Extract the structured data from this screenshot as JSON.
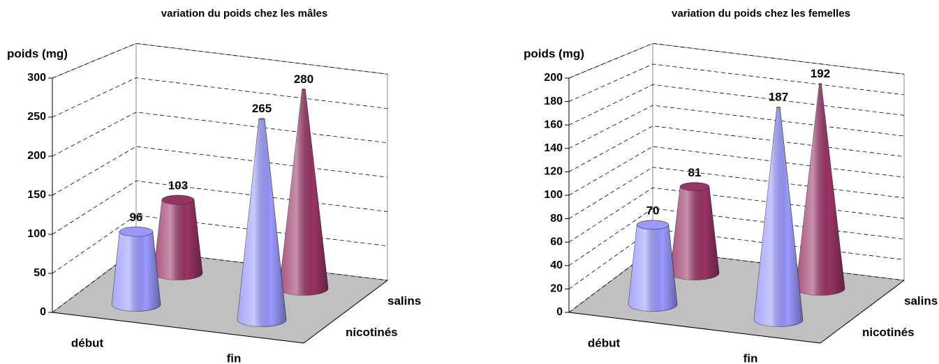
{
  "chart_data": [
    {
      "type": "cone",
      "title": "variation du poids chez les mâles",
      "y_label": "poids (mg)",
      "categories": [
        "début",
        "fin"
      ],
      "series": [
        {
          "name": "nicotinés",
          "color": "#9999ff",
          "values": [
            96,
            265
          ]
        },
        {
          "name": "salins",
          "color": "#993366",
          "values": [
            103,
            280
          ]
        }
      ],
      "ylim": [
        0,
        300
      ],
      "yticks": [
        0,
        50,
        100,
        150,
        200,
        250,
        300
      ],
      "grid": true
    },
    {
      "type": "cone",
      "title": "variation du poids chez les femelles",
      "y_label": "poids (mg)",
      "categories": [
        "début",
        "fin"
      ],
      "series": [
        {
          "name": "nicotinés",
          "color": "#9999ff",
          "values": [
            70,
            187
          ]
        },
        {
          "name": "salins",
          "color": "#993366",
          "values": [
            81,
            192
          ]
        }
      ],
      "ylim": [
        0,
        200
      ],
      "yticks": [
        0,
        20,
        40,
        60,
        80,
        100,
        120,
        140,
        160,
        180,
        200
      ],
      "grid": true
    }
  ]
}
